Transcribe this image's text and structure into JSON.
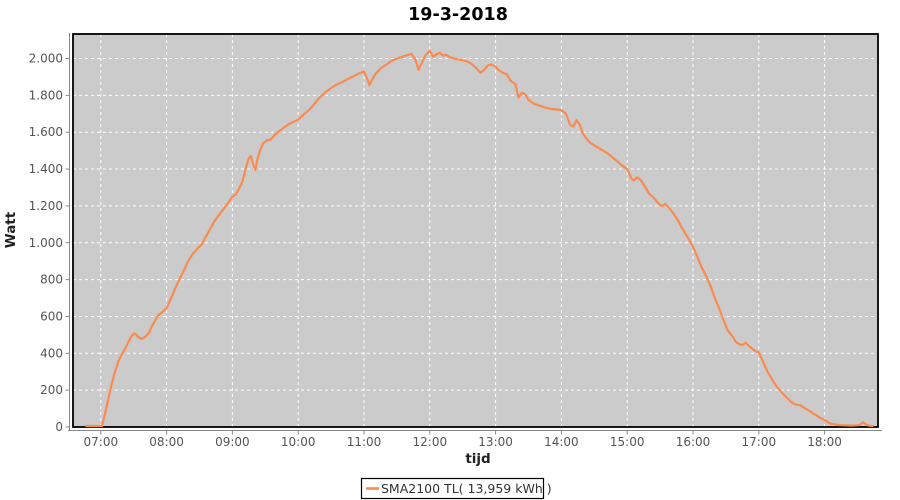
{
  "window": {
    "title": "19-3-2018"
  },
  "chart_data": {
    "type": "line",
    "title": "19-3-2018",
    "xlabel": "tijd",
    "ylabel": "Watt",
    "x_unit": "hour_of_day",
    "xlim": [
      6.57,
      18.8
    ],
    "ylim": [
      0,
      2133
    ],
    "grid": "white-dashed",
    "x_ticks": [
      7,
      8,
      9,
      10,
      11,
      12,
      13,
      14,
      15,
      16,
      17,
      18
    ],
    "x_ticklabels": [
      "07:00",
      "08:00",
      "09:00",
      "10:00",
      "11:00",
      "12:00",
      "13:00",
      "14:00",
      "15:00",
      "16:00",
      "17:00",
      "18:00"
    ],
    "y_ticks": [
      0,
      200,
      400,
      600,
      800,
      1000,
      1200,
      1400,
      1600,
      1800,
      2000
    ],
    "y_ticklabels": [
      "0",
      "200",
      "400",
      "600",
      "800",
      "1.000",
      "1.200",
      "1.400",
      "1.600",
      "1.800",
      "2.000"
    ],
    "colors": {
      "line": "#F98B50",
      "plot_bg": "#CBCBCB",
      "grid": "#FFFFFF",
      "plot_border": "#000000",
      "axis_line": "#888888",
      "tick_label": "#555555",
      "page_bg": "#FFFFFF"
    },
    "legend": {
      "position": "bottom-center",
      "entries": [
        {
          "label": "SMA2100 TL( 13,959 kWh )",
          "color": "#F98B50"
        }
      ]
    },
    "series": [
      {
        "name": "SMA2100 TL( 13,959 kWh )",
        "color": "#F98B50",
        "points": [
          [
            6.78,
            0
          ],
          [
            6.87,
            0
          ],
          [
            6.95,
            0
          ],
          [
            7.02,
            5
          ],
          [
            7.07,
            80
          ],
          [
            7.12,
            160
          ],
          [
            7.17,
            240
          ],
          [
            7.22,
            305
          ],
          [
            7.27,
            360
          ],
          [
            7.32,
            395
          ],
          [
            7.37,
            425
          ],
          [
            7.42,
            462
          ],
          [
            7.47,
            495
          ],
          [
            7.52,
            508
          ],
          [
            7.57,
            488
          ],
          [
            7.62,
            478
          ],
          [
            7.67,
            488
          ],
          [
            7.73,
            510
          ],
          [
            7.78,
            548
          ],
          [
            7.83,
            582
          ],
          [
            7.88,
            608
          ],
          [
            7.95,
            628
          ],
          [
            8.0,
            646
          ],
          [
            8.07,
            700
          ],
          [
            8.13,
            752
          ],
          [
            8.2,
            806
          ],
          [
            8.27,
            855
          ],
          [
            8.33,
            902
          ],
          [
            8.4,
            940
          ],
          [
            8.47,
            968
          ],
          [
            8.53,
            990
          ],
          [
            8.6,
            1035
          ],
          [
            8.67,
            1080
          ],
          [
            8.73,
            1118
          ],
          [
            8.8,
            1152
          ],
          [
            8.87,
            1185
          ],
          [
            8.93,
            1215
          ],
          [
            9.0,
            1250
          ],
          [
            9.05,
            1262
          ],
          [
            9.1,
            1292
          ],
          [
            9.15,
            1330
          ],
          [
            9.2,
            1400
          ],
          [
            9.25,
            1458
          ],
          [
            9.28,
            1472
          ],
          [
            9.32,
            1420
          ],
          [
            9.35,
            1395
          ],
          [
            9.38,
            1452
          ],
          [
            9.42,
            1500
          ],
          [
            9.47,
            1540
          ],
          [
            9.52,
            1555
          ],
          [
            9.58,
            1560
          ],
          [
            9.65,
            1588
          ],
          [
            9.72,
            1608
          ],
          [
            9.78,
            1625
          ],
          [
            9.85,
            1642
          ],
          [
            9.92,
            1655
          ],
          [
            10.0,
            1668
          ],
          [
            10.08,
            1695
          ],
          [
            10.17,
            1722
          ],
          [
            10.25,
            1755
          ],
          [
            10.33,
            1790
          ],
          [
            10.42,
            1818
          ],
          [
            10.5,
            1840
          ],
          [
            10.58,
            1858
          ],
          [
            10.67,
            1872
          ],
          [
            10.75,
            1888
          ],
          [
            10.83,
            1902
          ],
          [
            10.92,
            1918
          ],
          [
            11.0,
            1930
          ],
          [
            11.05,
            1888
          ],
          [
            11.08,
            1855
          ],
          [
            11.13,
            1890
          ],
          [
            11.18,
            1918
          ],
          [
            11.25,
            1945
          ],
          [
            11.32,
            1962
          ],
          [
            11.4,
            1982
          ],
          [
            11.47,
            1995
          ],
          [
            11.53,
            2003
          ],
          [
            11.6,
            2012
          ],
          [
            11.67,
            2020
          ],
          [
            11.72,
            2026
          ],
          [
            11.78,
            1995
          ],
          [
            11.83,
            1938
          ],
          [
            11.88,
            1978
          ],
          [
            11.93,
            2015
          ],
          [
            12.0,
            2042
          ],
          [
            12.05,
            2010
          ],
          [
            12.1,
            2022
          ],
          [
            12.15,
            2032
          ],
          [
            12.2,
            2015
          ],
          [
            12.25,
            2020
          ],
          [
            12.3,
            2008
          ],
          [
            12.37,
            2000
          ],
          [
            12.43,
            1995
          ],
          [
            12.5,
            1990
          ],
          [
            12.57,
            1983
          ],
          [
            12.63,
            1972
          ],
          [
            12.7,
            1950
          ],
          [
            12.77,
            1923
          ],
          [
            12.83,
            1940
          ],
          [
            12.88,
            1962
          ],
          [
            12.93,
            1968
          ],
          [
            13.0,
            1956
          ],
          [
            13.05,
            1936
          ],
          [
            13.1,
            1924
          ],
          [
            13.17,
            1914
          ],
          [
            13.23,
            1878
          ],
          [
            13.3,
            1862
          ],
          [
            13.35,
            1788
          ],
          [
            13.4,
            1815
          ],
          [
            13.45,
            1806
          ],
          [
            13.5,
            1776
          ],
          [
            13.57,
            1757
          ],
          [
            13.63,
            1748
          ],
          [
            13.7,
            1740
          ],
          [
            13.78,
            1732
          ],
          [
            13.85,
            1726
          ],
          [
            13.93,
            1723
          ],
          [
            14.0,
            1720
          ],
          [
            14.07,
            1700
          ],
          [
            14.13,
            1642
          ],
          [
            14.18,
            1630
          ],
          [
            14.23,
            1665
          ],
          [
            14.28,
            1640
          ],
          [
            14.33,
            1590
          ],
          [
            14.38,
            1567
          ],
          [
            14.43,
            1545
          ],
          [
            14.5,
            1528
          ],
          [
            14.57,
            1513
          ],
          [
            14.63,
            1500
          ],
          [
            14.7,
            1485
          ],
          [
            14.77,
            1465
          ],
          [
            14.85,
            1442
          ],
          [
            14.92,
            1420
          ],
          [
            15.0,
            1400
          ],
          [
            15.07,
            1345
          ],
          [
            15.1,
            1338
          ],
          [
            15.15,
            1355
          ],
          [
            15.2,
            1342
          ],
          [
            15.27,
            1305
          ],
          [
            15.33,
            1268
          ],
          [
            15.4,
            1245
          ],
          [
            15.47,
            1215
          ],
          [
            15.53,
            1198
          ],
          [
            15.58,
            1212
          ],
          [
            15.63,
            1192
          ],
          [
            15.7,
            1160
          ],
          [
            15.77,
            1122
          ],
          [
            15.83,
            1082
          ],
          [
            15.9,
            1040
          ],
          [
            15.97,
            1000
          ],
          [
            16.0,
            978
          ],
          [
            16.07,
            920
          ],
          [
            16.13,
            868
          ],
          [
            16.2,
            818
          ],
          [
            16.27,
            762
          ],
          [
            16.33,
            702
          ],
          [
            16.4,
            642
          ],
          [
            16.47,
            575
          ],
          [
            16.53,
            522
          ],
          [
            16.6,
            492
          ],
          [
            16.65,
            462
          ],
          [
            16.7,
            450
          ],
          [
            16.75,
            445
          ],
          [
            16.8,
            458
          ],
          [
            16.85,
            440
          ],
          [
            16.9,
            425
          ],
          [
            16.95,
            412
          ],
          [
            17.0,
            405
          ],
          [
            17.07,
            350
          ],
          [
            17.13,
            302
          ],
          [
            17.18,
            272
          ],
          [
            17.23,
            242
          ],
          [
            17.28,
            215
          ],
          [
            17.33,
            196
          ],
          [
            17.38,
            176
          ],
          [
            17.43,
            158
          ],
          [
            17.48,
            140
          ],
          [
            17.53,
            126
          ],
          [
            17.58,
            120
          ],
          [
            17.63,
            118
          ],
          [
            17.68,
            106
          ],
          [
            17.73,
            96
          ],
          [
            17.78,
            86
          ],
          [
            17.83,
            72
          ],
          [
            17.88,
            62
          ],
          [
            17.93,
            50
          ],
          [
            18.0,
            38
          ],
          [
            18.05,
            26
          ],
          [
            18.1,
            18
          ],
          [
            18.17,
            13
          ],
          [
            18.23,
            10
          ],
          [
            18.3,
            9
          ],
          [
            18.37,
            8
          ],
          [
            18.43,
            8
          ],
          [
            18.5,
            9
          ],
          [
            18.55,
            14
          ],
          [
            18.58,
            26
          ],
          [
            18.62,
            16
          ],
          [
            18.65,
            9
          ],
          [
            18.7,
            6
          ],
          [
            18.73,
            5
          ]
        ]
      }
    ]
  }
}
